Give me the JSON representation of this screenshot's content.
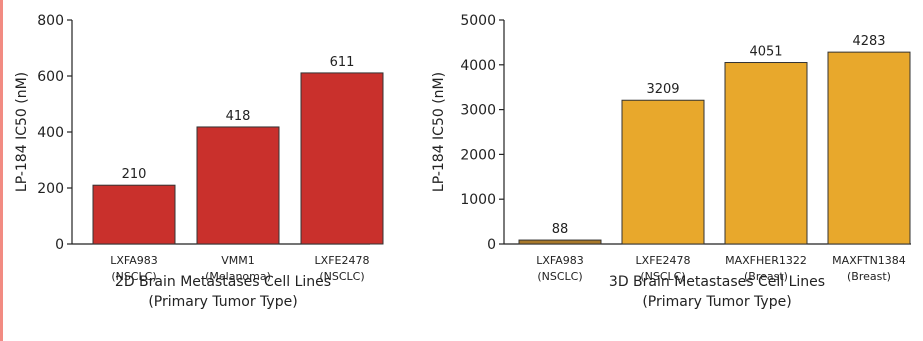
{
  "edge_color": "#f28b82",
  "chart_data": [
    {
      "type": "bar",
      "categories": [
        "LXFA983\n(NSCLC)",
        "VMM1\n(Melanoma)",
        "LXFE2478\n(NSCLC)"
      ],
      "values": [
        210,
        418,
        611
      ],
      "value_labels": [
        "210",
        "418",
        "611"
      ],
      "ylabel": "LP-184 IC50 (nM)",
      "xlabel": [
        "2D Brain Metastases Cell Lines",
        "(Primary Tumor Type)"
      ],
      "ylim": [
        0,
        800
      ],
      "yticks": [
        0,
        200,
        400,
        600,
        800
      ],
      "ytick_labels": [
        "0",
        "200",
        "400",
        "600",
        "800"
      ],
      "bar_colors": [
        "#c9302c",
        "#c9302c",
        "#c9302c"
      ],
      "grid": false
    },
    {
      "type": "bar",
      "categories": [
        "LXFA983\n(NSCLC)",
        "LXFE2478\n(NSCLC)",
        "MAXFHER1322\n(Breast)",
        "MAXFTN1384\n(Breast)"
      ],
      "values": [
        88,
        3209,
        4051,
        4283
      ],
      "value_labels": [
        "88",
        "3209",
        "4051",
        "4283"
      ],
      "ylabel": "LP-184 IC50 (nM)",
      "xlabel": [
        "3D Brain Metastases Cell Lines",
        "(Primary Tumor Type)"
      ],
      "ylim": [
        0,
        5000
      ],
      "yticks": [
        0,
        1000,
        2000,
        3000,
        4000,
        5000
      ],
      "ytick_labels": [
        "0",
        "1000",
        "2000",
        "3000",
        "4000",
        "5000"
      ],
      "bar_colors": [
        "#a8782a",
        "#e8a82c",
        "#e8a82c",
        "#e8a82c"
      ],
      "grid": false
    }
  ]
}
